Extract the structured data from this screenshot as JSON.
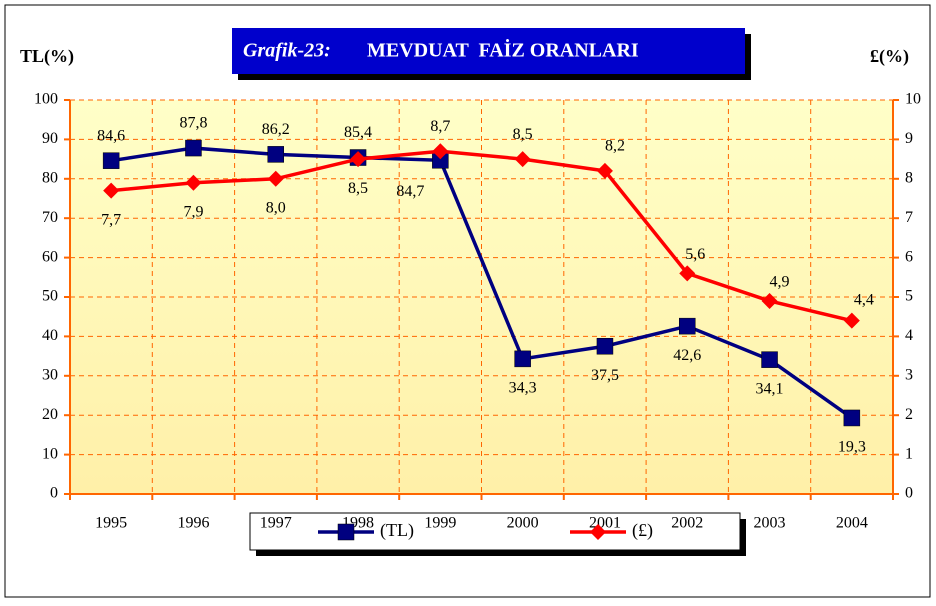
{
  "chart_data": {
    "type": "line",
    "title": [
      "Grafik-23:",
      "MEVDUAT  FAİZ ORANLARI"
    ],
    "y_label": "TL(%)",
    "y2_label": "£(%)",
    "categories": [
      "1995",
      "1996",
      "1997",
      "1998",
      "1999",
      "2000",
      "2001",
      "2002",
      "2003",
      "2004"
    ],
    "series": [
      {
        "name": "(TL)",
        "color": "#000080",
        "marker": "square",
        "values": [
          84.6,
          87.8,
          86.2,
          85.4,
          84.7,
          34.3,
          37.5,
          42.6,
          34.1,
          19.3
        ],
        "value_labels": [
          "84,6",
          "87,8",
          "86,2",
          "85,4",
          "84,7",
          "34,3",
          "37,5",
          "42,6",
          "34,1",
          "19,3"
        ]
      },
      {
        "name": "(£)",
        "color": "#ff0000",
        "marker": "diamond",
        "axis": "y2",
        "values": [
          7.7,
          7.9,
          8.0,
          8.5,
          8.7,
          8.5,
          8.2,
          5.6,
          4.9,
          4.4
        ],
        "value_labels": [
          "7,7",
          "7,9",
          "8,0",
          "8,5",
          "8,7",
          "8,5",
          "8,2",
          "5,6",
          "4,9",
          "4,4"
        ]
      }
    ],
    "ylim": [
      0,
      100
    ],
    "yticks": [
      0,
      10,
      20,
      30,
      40,
      50,
      60,
      70,
      80,
      90,
      100
    ],
    "y2lim": [
      0,
      10
    ],
    "y2ticks": [
      0,
      1,
      2,
      3,
      4,
      5,
      6,
      7,
      8,
      9,
      10
    ],
    "grid": true,
    "legend": "bottom"
  }
}
